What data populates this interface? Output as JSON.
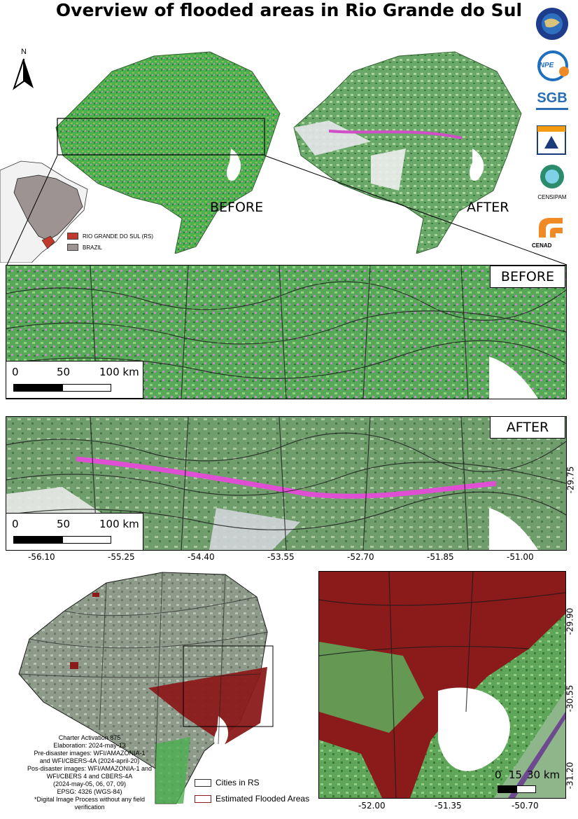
{
  "title": "Overview of flooded areas in Rio Grande do Sul",
  "north_arrow": "N",
  "top_maps": {
    "before_label": "BEFORE",
    "after_label": "AFTER"
  },
  "inset_legend": {
    "rs_label": "RIO GRANDE DO SUL (RS)",
    "rs_color": "#c0392b",
    "brazil_label": "BRAZIL",
    "brazil_color": "#9e9393"
  },
  "logos": [
    {
      "name": "charter-logo",
      "text": ""
    },
    {
      "name": "inpe-logo",
      "text": "INPE"
    },
    {
      "name": "sgb-logo",
      "text": "SGB"
    },
    {
      "name": "defesa-civil-logo",
      "text": ""
    },
    {
      "name": "censipam-logo",
      "text": "CENSIPAM"
    },
    {
      "name": "cenad-logo",
      "text": "CENAD"
    }
  ],
  "strip_before": {
    "label": "BEFORE",
    "scale": {
      "t0": "0",
      "t1": "50",
      "t2": "100 km"
    }
  },
  "strip_after": {
    "label": "AFTER",
    "scale": {
      "t0": "0",
      "t1": "50",
      "t2": "100 km"
    },
    "lat_label": "-29.75",
    "lon_labels": [
      "-56.10",
      "-55.25",
      "-54.40",
      "-53.55",
      "-52.70",
      "-51.85",
      "-51.00"
    ]
  },
  "bottom_right": {
    "lat_labels": [
      "-29.90",
      "-30.55",
      "-31.20"
    ],
    "lon_labels": [
      "-52.00",
      "-51.35",
      "-50.70"
    ],
    "scale": {
      "t0": "0",
      "t1": "15",
      "t2": "30 km"
    }
  },
  "legend": {
    "cities_label": "Cities in RS",
    "cities_color": "#333333",
    "flood_label": "Estimated Flooded Areas",
    "flood_color": "#8b1a1a"
  },
  "notes": [
    "Charter Activation 875",
    "Elaboration: 2024-may-13",
    "Pre-disaster images: WFI/AMAZONIA-1",
    "and WFI/CBERS-4A (2024-april-20)",
    "Pos-disaster images: WFI/AMAZONIA-1 and",
    "WFI/CBERS 4 and CBERS-4A",
    "(2024-may-05, 06, 07, 09)",
    "EPSG: 4326 (WGS-84)",
    "*Digital Image Process without any field",
    "verification"
  ]
}
